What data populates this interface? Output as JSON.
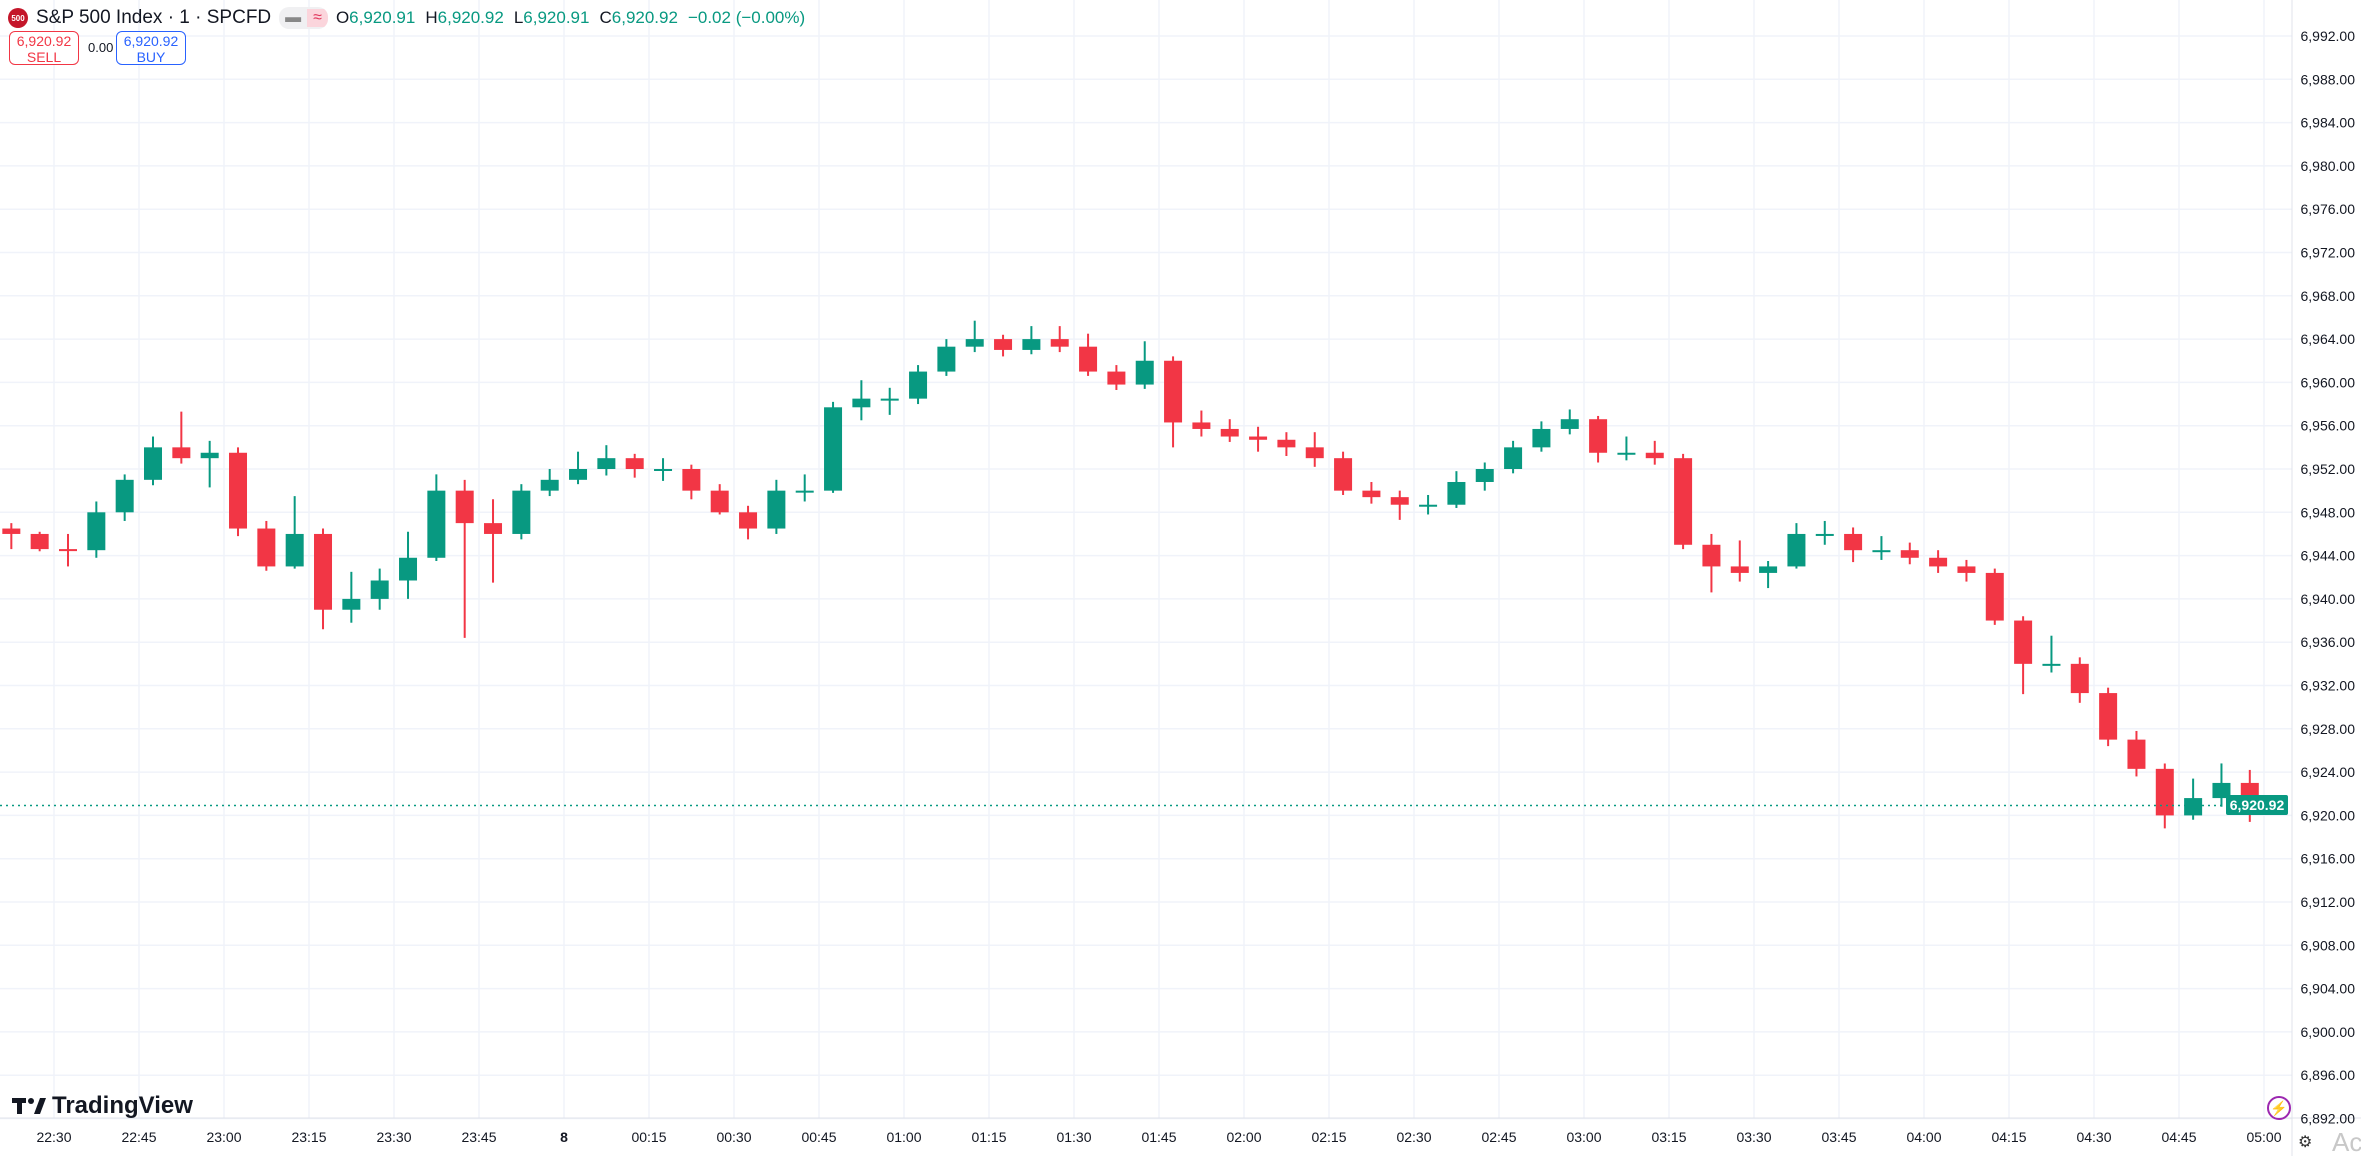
{
  "header": {
    "symbol_badge": "500",
    "title": "S&P 500 Index · 1 · SPCFD",
    "pill_left": "▬",
    "pill_right": "≈",
    "ohlc": {
      "o_label": "O",
      "o": "6,920.91",
      "h_label": "H",
      "h": "6,920.92",
      "l_label": "L",
      "l": "6,920.91",
      "c_label": "C",
      "c": "6,920.92",
      "change": "−0.02 (−0.00%)"
    }
  },
  "trade": {
    "sell_price": "6,920.92",
    "sell_label": "SELL",
    "spread": "0.00",
    "buy_price": "6,920.92",
    "buy_label": "BUY"
  },
  "brand": "TradingView",
  "current_price_label": "6,920.92",
  "watermark": "Activ",
  "colors": {
    "up": "#089981",
    "down": "#f23645",
    "grid": "#f0f3fa",
    "accent": "#089981"
  },
  "icons": {
    "bottom_left": "tradingview-logo",
    "bottom_right_1": "lightning-icon",
    "bottom_right_2": "settings-icon"
  },
  "chart_data": {
    "type": "candlestick",
    "interval_shown": "1",
    "ylim": [
      6890,
      6994
    ],
    "y_ticks": [
      "6,992.00",
      "6,988.00",
      "6,984.00",
      "6,980.00",
      "6,976.00",
      "6,972.00",
      "6,968.00",
      "6,964.00",
      "6,960.00",
      "6,956.00",
      "6,952.00",
      "6,948.00",
      "6,944.00",
      "6,940.00",
      "6,936.00",
      "6,932.00",
      "6,928.00",
      "6,924.00",
      "6,920.00",
      "6,916.00",
      "6,912.00",
      "6,908.00",
      "6,904.00",
      "6,900.00",
      "6,896.00",
      "6,892.00"
    ],
    "x_ticks": [
      "22:30",
      "22:45",
      "23:00",
      "23:15",
      "23:30",
      "23:45",
      "8",
      "00:15",
      "00:30",
      "00:45",
      "01:00",
      "01:15",
      "01:30",
      "01:45",
      "02:00",
      "02:15",
      "02:30",
      "02:45",
      "03:00",
      "03:15",
      "03:30",
      "03:45",
      "04:00",
      "04:15",
      "04:30",
      "04:45",
      "05:00"
    ],
    "grid": true,
    "last_price": 6920.92,
    "candles_ohlc": [
      [
        "22:20",
        6946.5,
        6947.0,
        6944.6,
        6946.0
      ],
      [
        "22:25",
        6946.0,
        6946.2,
        6944.4,
        6944.6
      ],
      [
        "22:30",
        6944.6,
        6946.0,
        6943.0,
        6944.5
      ],
      [
        "22:35",
        6944.5,
        6949.0,
        6943.8,
        6948.0
      ],
      [
        "22:40",
        6948.0,
        6951.5,
        6947.2,
        6951.0
      ],
      [
        "22:45",
        6951.0,
        6955.0,
        6950.5,
        6954.0
      ],
      [
        "22:50",
        6954.0,
        6957.3,
        6952.5,
        6953.0
      ],
      [
        "22:55",
        6953.0,
        6954.6,
        6950.3,
        6953.5
      ],
      [
        "23:00",
        6953.5,
        6954.0,
        6945.8,
        6946.5
      ],
      [
        "23:05",
        6946.5,
        6947.2,
        6942.6,
        6943.0
      ],
      [
        "23:10",
        6943.0,
        6949.5,
        6942.8,
        6946.0
      ],
      [
        "23:15",
        6946.0,
        6946.5,
        6937.2,
        6939.0
      ],
      [
        "23:20",
        6939.0,
        6942.5,
        6937.8,
        6940.0
      ],
      [
        "23:25",
        6940.0,
        6942.8,
        6939.0,
        6941.7
      ],
      [
        "23:30",
        6941.7,
        6946.2,
        6940.0,
        6943.8
      ],
      [
        "23:35",
        6943.8,
        6951.5,
        6943.5,
        6950.0
      ],
      [
        "23:40",
        6950.0,
        6951.0,
        6936.4,
        6947.0
      ],
      [
        "23:45",
        6947.0,
        6949.2,
        6941.5,
        6946.0
      ],
      [
        "23:50",
        6946.0,
        6950.6,
        6945.5,
        6950.0
      ],
      [
        "23:55",
        6950.0,
        6952.0,
        6949.5,
        6951.0
      ],
      [
        "00:00",
        6951.0,
        6953.6,
        6950.6,
        6952.0
      ],
      [
        "00:05",
        6952.0,
        6954.2,
        6951.4,
        6953.0
      ],
      [
        "00:10",
        6953.0,
        6953.4,
        6951.2,
        6952.0
      ],
      [
        "00:15",
        6952.0,
        6953.0,
        6950.9,
        6952.0
      ],
      [
        "00:20",
        6952.0,
        6952.4,
        6949.2,
        6950.0
      ],
      [
        "00:25",
        6950.0,
        6950.6,
        6947.8,
        6948.0
      ],
      [
        "00:30",
        6948.0,
        6948.6,
        6945.5,
        6946.5
      ],
      [
        "00:35",
        6946.5,
        6951.0,
        6946.0,
        6950.0
      ],
      [
        "00:40",
        6950.0,
        6951.5,
        6949.0,
        6950.0
      ],
      [
        "00:45",
        6950.0,
        6958.2,
        6949.8,
        6957.7
      ],
      [
        "00:50",
        6957.7,
        6960.2,
        6956.5,
        6958.5
      ],
      [
        "00:55",
        6958.5,
        6959.5,
        6957.0,
        6958.5
      ],
      [
        "01:00",
        6958.5,
        6961.6,
        6958.0,
        6961.0
      ],
      [
        "01:05",
        6961.0,
        6964.0,
        6960.6,
        6963.3
      ],
      [
        "01:10",
        6963.3,
        6965.7,
        6962.8,
        6964.0
      ],
      [
        "01:15",
        6964.0,
        6964.4,
        6962.4,
        6963.0
      ],
      [
        "01:20",
        6963.0,
        6965.2,
        6962.6,
        6964.0
      ],
      [
        "01:25",
        6964.0,
        6965.2,
        6962.8,
        6963.3
      ],
      [
        "01:30",
        6963.3,
        6964.5,
        6960.6,
        6961.0
      ],
      [
        "01:35",
        6961.0,
        6961.6,
        6959.3,
        6959.8
      ],
      [
        "01:40",
        6959.8,
        6963.8,
        6959.4,
        6962.0
      ],
      [
        "01:45",
        6962.0,
        6962.4,
        6954.0,
        6956.3
      ],
      [
        "01:50",
        6956.3,
        6957.4,
        6955.0,
        6955.7
      ],
      [
        "01:55",
        6955.7,
        6956.6,
        6954.5,
        6955.0
      ],
      [
        "02:00",
        6955.0,
        6955.9,
        6953.6,
        6954.7
      ],
      [
        "02:05",
        6954.7,
        6955.4,
        6953.2,
        6954.0
      ],
      [
        "02:10",
        6954.0,
        6955.4,
        6952.2,
        6953.0
      ],
      [
        "02:15",
        6953.0,
        6953.6,
        6949.6,
        6950.0
      ],
      [
        "02:20",
        6950.0,
        6950.8,
        6948.8,
        6949.4
      ],
      [
        "02:25",
        6949.4,
        6950.0,
        6947.3,
        6948.7
      ],
      [
        "02:30",
        6948.7,
        6949.6,
        6947.8,
        6948.7
      ],
      [
        "02:35",
        6948.7,
        6951.8,
        6948.4,
        6950.8
      ],
      [
        "02:40",
        6950.8,
        6952.6,
        6950.0,
        6952.0
      ],
      [
        "02:45",
        6952.0,
        6954.6,
        6951.6,
        6954.0
      ],
      [
        "02:50",
        6954.0,
        6956.4,
        6953.6,
        6955.7
      ],
      [
        "02:55",
        6955.7,
        6957.5,
        6955.2,
        6956.6
      ],
      [
        "03:00",
        6956.6,
        6956.9,
        6952.6,
        6953.5
      ],
      [
        "03:05",
        6953.5,
        6955.0,
        6952.8,
        6953.5
      ],
      [
        "03:10",
        6953.5,
        6954.6,
        6952.4,
        6953.0
      ],
      [
        "03:15",
        6953.0,
        6953.4,
        6944.6,
        6945.0
      ],
      [
        "03:20",
        6945.0,
        6946.0,
        6940.6,
        6943.0
      ],
      [
        "03:25",
        6943.0,
        6945.4,
        6941.6,
        6942.4
      ],
      [
        "03:30",
        6942.4,
        6943.5,
        6941.0,
        6943.0
      ],
      [
        "03:35",
        6943.0,
        6947.0,
        6942.8,
        6946.0
      ],
      [
        "03:40",
        6946.0,
        6947.2,
        6945.0,
        6946.0
      ],
      [
        "03:45",
        6946.0,
        6946.6,
        6943.4,
        6944.5
      ],
      [
        "03:50",
        6944.5,
        6945.8,
        6943.6,
        6944.5
      ],
      [
        "03:55",
        6944.5,
        6945.2,
        6943.2,
        6943.8
      ],
      [
        "04:00",
        6943.8,
        6944.5,
        6942.4,
        6943.0
      ],
      [
        "04:05",
        6943.0,
        6943.6,
        6941.6,
        6942.4
      ],
      [
        "04:10",
        6942.4,
        6942.8,
        6937.6,
        6938.0
      ],
      [
        "04:15",
        6938.0,
        6938.4,
        6931.2,
        6934.0
      ],
      [
        "04:20",
        6934.0,
        6936.6,
        6933.2,
        6934.0
      ],
      [
        "04:25",
        6934.0,
        6934.6,
        6930.4,
        6931.3
      ],
      [
        "04:30",
        6931.3,
        6931.8,
        6926.4,
        6927.0
      ],
      [
        "04:35",
        6927.0,
        6927.8,
        6923.6,
        6924.3
      ],
      [
        "04:40",
        6924.3,
        6924.8,
        6918.8,
        6920.0
      ],
      [
        "04:45",
        6920.0,
        6923.4,
        6919.6,
        6921.6
      ],
      [
        "04:50",
        6921.6,
        6924.8,
        6920.8,
        6923.0
      ],
      [
        "04:55",
        6923.0,
        6924.2,
        6919.4,
        6920.92
      ]
    ]
  }
}
